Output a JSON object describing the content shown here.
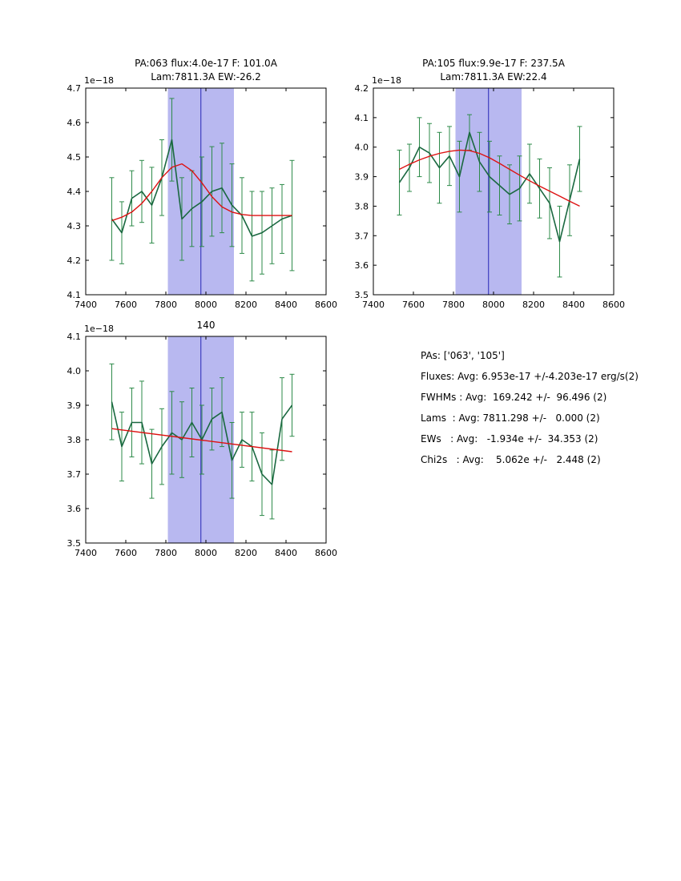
{
  "figure": {
    "bg": "#ffffff",
    "colors": {
      "band": "#b8b8f0",
      "vline": "#2525b5",
      "errorbar": "#2e8b4a",
      "data_line": "#1a6840",
      "fit_line": "#dd1111",
      "axis": "#000000"
    },
    "stats": {
      "lines": [
        "PAs: ['063', '105']",
        "Fluxes: Avg: 6.953e-17 +/-4.203e-17 erg/s(2)",
        "FWHMs : Avg:  169.242 +/-  96.496 (2)",
        "Lams  : Avg: 7811.298 +/-   0.000 (2)",
        "EWs   : Avg:   -1.934e +/-  34.353 (2)",
        "Chi2s   : Avg:    5.062e +/-   2.448 (2)"
      ]
    }
  },
  "chart_data": [
    {
      "type": "line",
      "title": "PA:063 flux:4.0e-17 F: 101.0A Lam:7811.3A EW:-26.2",
      "title_lines": [
        "PA:063 flux:4.0e-17 F: 101.0A",
        "Lam:7811.3A EW:-26.2"
      ],
      "offset_label": "1e−18",
      "xlabel": "",
      "ylabel": "",
      "xlim": [
        7400,
        8600
      ],
      "ylim": [
        4.1,
        4.7
      ],
      "xtick_values": [
        7400,
        7600,
        7800,
        8000,
        8200,
        8400,
        8600
      ],
      "xtick_labels": [
        "7400",
        "7600",
        "7800",
        "8000",
        "8200",
        "8400",
        "8600"
      ],
      "ytick_values": [
        4.1,
        4.2,
        4.3,
        4.4,
        4.5,
        4.6,
        4.7
      ],
      "ytick_labels": [
        "4.1",
        "4.2",
        "4.3",
        "4.4",
        "4.5",
        "4.6",
        "4.7"
      ],
      "band": [
        7810,
        8140
      ],
      "vline": 7975,
      "x": [
        7530,
        7580,
        7630,
        7680,
        7730,
        7780,
        7830,
        7880,
        7930,
        7980,
        8030,
        8080,
        8130,
        8180,
        8230,
        8280,
        8330,
        8380,
        8430
      ],
      "y": [
        4.32,
        4.28,
        4.38,
        4.4,
        4.36,
        4.44,
        4.55,
        4.32,
        4.35,
        4.37,
        4.4,
        4.41,
        4.36,
        4.33,
        4.27,
        4.28,
        4.3,
        4.32,
        4.33
      ],
      "yerr": [
        0.12,
        0.09,
        0.08,
        0.09,
        0.11,
        0.11,
        0.12,
        0.12,
        0.11,
        0.13,
        0.13,
        0.13,
        0.12,
        0.11,
        0.13,
        0.12,
        0.11,
        0.1,
        0.16
      ],
      "fit": {
        "x": [
          7530,
          7580,
          7630,
          7680,
          7730,
          7780,
          7830,
          7880,
          7930,
          7980,
          8030,
          8080,
          8130,
          8180,
          8230,
          8280,
          8330,
          8380,
          8430
        ],
        "y": [
          4.315,
          4.325,
          4.34,
          4.365,
          4.4,
          4.44,
          4.47,
          4.48,
          4.46,
          4.425,
          4.385,
          4.355,
          4.34,
          4.333,
          4.33,
          4.33,
          4.33,
          4.33,
          4.33
        ]
      }
    },
    {
      "type": "line",
      "title": "PA:105 flux:9.9e-17 F: 237.5A Lam:7811.3A EW:22.4",
      "title_lines": [
        "PA:105 flux:9.9e-17 F: 237.5A",
        "Lam:7811.3A EW:22.4"
      ],
      "offset_label": "1e−18",
      "xlabel": "",
      "ylabel": "",
      "xlim": [
        7400,
        8600
      ],
      "ylim": [
        3.5,
        4.2
      ],
      "xtick_values": [
        7400,
        7600,
        7800,
        8000,
        8200,
        8400,
        8600
      ],
      "xtick_labels": [
        "7400",
        "7600",
        "7800",
        "8000",
        "8200",
        "8400",
        "8600"
      ],
      "ytick_values": [
        3.5,
        3.6,
        3.7,
        3.8,
        3.9,
        4.0,
        4.1,
        4.2
      ],
      "ytick_labels": [
        "3.5",
        "3.6",
        "3.7",
        "3.8",
        "3.9",
        "4.0",
        "4.1",
        "4.2"
      ],
      "band": [
        7810,
        8140
      ],
      "vline": 7975,
      "x": [
        7530,
        7580,
        7630,
        7680,
        7730,
        7780,
        7830,
        7880,
        7930,
        7980,
        8030,
        8080,
        8130,
        8180,
        8230,
        8280,
        8330,
        8380,
        8430
      ],
      "y": [
        3.88,
        3.93,
        4.0,
        3.98,
        3.93,
        3.97,
        3.9,
        4.05,
        3.95,
        3.9,
        3.87,
        3.84,
        3.86,
        3.91,
        3.86,
        3.81,
        3.68,
        3.82,
        3.96
      ],
      "yerr": [
        0.11,
        0.08,
        0.1,
        0.1,
        0.12,
        0.1,
        0.12,
        0.06,
        0.1,
        0.12,
        0.1,
        0.1,
        0.11,
        0.1,
        0.1,
        0.12,
        0.12,
        0.12,
        0.11
      ],
      "fit": {
        "x": [
          7530,
          7580,
          7630,
          7680,
          7730,
          7780,
          7830,
          7880,
          7930,
          7980,
          8030,
          8080,
          8130,
          8180,
          8230,
          8280,
          8330,
          8380,
          8430
        ],
        "y": [
          3.925,
          3.942,
          3.957,
          3.969,
          3.979,
          3.986,
          3.99,
          3.988,
          3.979,
          3.964,
          3.945,
          3.925,
          3.905,
          3.886,
          3.868,
          3.851,
          3.834,
          3.817,
          3.8
        ]
      }
    },
    {
      "type": "line",
      "title": "140",
      "title_lines": [
        "140"
      ],
      "offset_label": "1e−18",
      "xlabel": "",
      "ylabel": "",
      "xlim": [
        7400,
        8600
      ],
      "ylim": [
        3.5,
        4.1
      ],
      "xtick_values": [
        7400,
        7600,
        7800,
        8000,
        8200,
        8400,
        8600
      ],
      "xtick_labels": [
        "7400",
        "7600",
        "7800",
        "8000",
        "8200",
        "8400",
        "8600"
      ],
      "ytick_values": [
        3.5,
        3.6,
        3.7,
        3.8,
        3.9,
        4.0,
        4.1
      ],
      "ytick_labels": [
        "3.5",
        "3.6",
        "3.7",
        "3.8",
        "3.9",
        "4.0",
        "4.1"
      ],
      "band": [
        7810,
        8140
      ],
      "vline": 7975,
      "x": [
        7530,
        7580,
        7630,
        7680,
        7730,
        7780,
        7830,
        7880,
        7930,
        7980,
        8030,
        8080,
        8130,
        8180,
        8230,
        8280,
        8330,
        8380,
        8430
      ],
      "y": [
        3.91,
        3.78,
        3.85,
        3.85,
        3.73,
        3.78,
        3.82,
        3.8,
        3.85,
        3.8,
        3.86,
        3.88,
        3.74,
        3.8,
        3.78,
        3.7,
        3.67,
        3.86,
        3.9
      ],
      "yerr": [
        0.11,
        0.1,
        0.1,
        0.12,
        0.1,
        0.11,
        0.12,
        0.11,
        0.1,
        0.1,
        0.09,
        0.1,
        0.11,
        0.08,
        0.1,
        0.12,
        0.1,
        0.12,
        0.09
      ],
      "fit": {
        "x": [
          7530,
          8430
        ],
        "y": [
          3.832,
          3.765
        ]
      }
    }
  ]
}
